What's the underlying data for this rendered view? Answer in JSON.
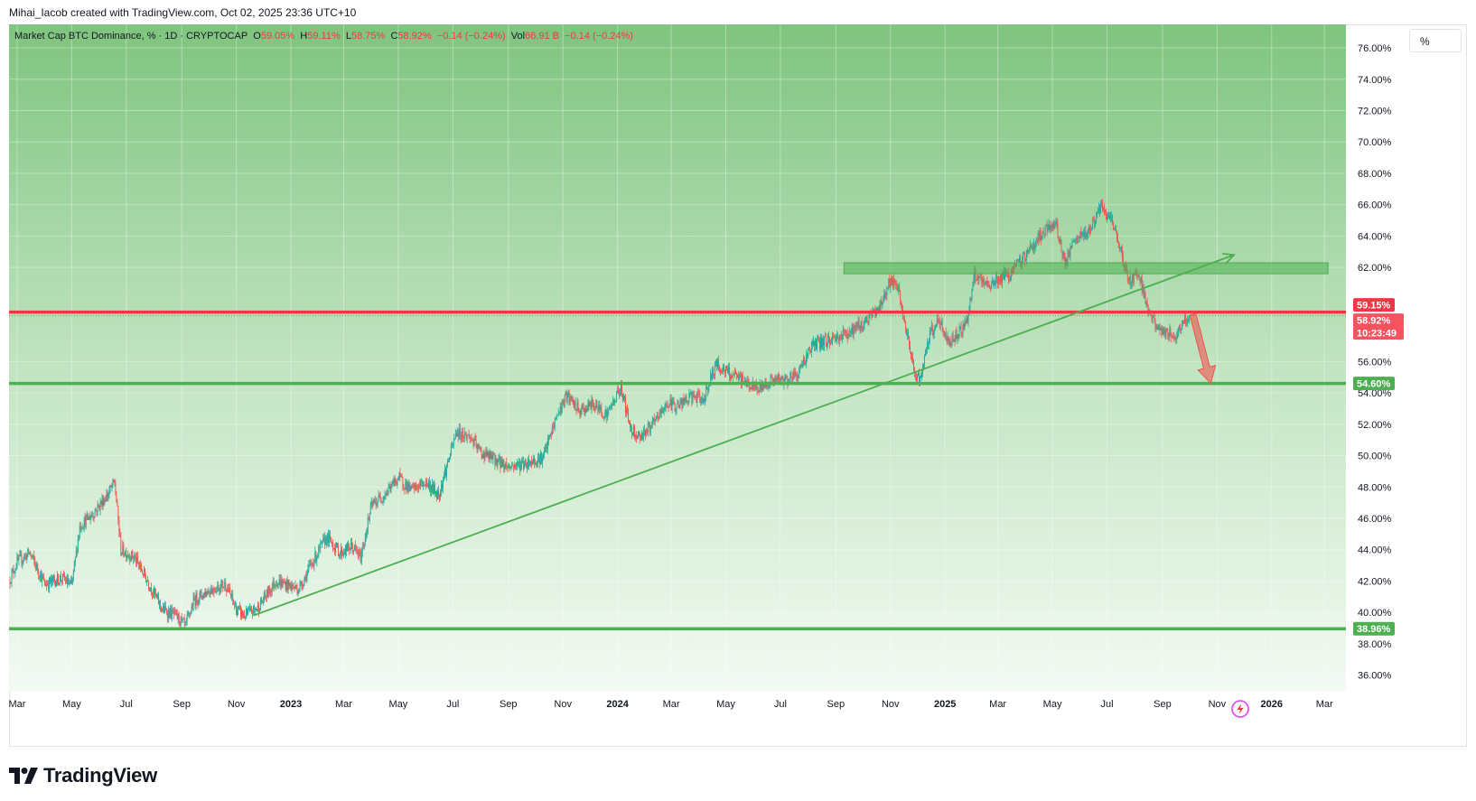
{
  "header": {
    "attribution": "Mihai_Iacob created with TradingView.com, Oct 02, 2025 23:36 UTC+10"
  },
  "legend": {
    "symbol": "Market Cap BTC Dominance, % · 1D · CRYPTOCAP",
    "o_label": "O",
    "o_value": "59.05%",
    "h_label": "H",
    "h_value": "59.11%",
    "l_label": "L",
    "l_value": "58.75%",
    "c_label": "C",
    "c_value": "58.92%",
    "change": "−0.14 (−0.24%)",
    "vol_label": "Vol",
    "vol_value": "66.91 B",
    "vol_change": "−0.14 (−0.24%)"
  },
  "scale_button": {
    "label": "%"
  },
  "branding": {
    "logo_text": "TradingView",
    "logo_icon": "tradingview-logo-icon"
  },
  "price_badges": [
    {
      "text": "59.15%",
      "value": 59.15,
      "color": "#f23645"
    },
    {
      "text": "58.92%",
      "value": 58.92,
      "color": "#f7525f"
    },
    {
      "text": "10:23:49",
      "value": 58.92,
      "color": "#f7525f"
    },
    {
      "text": "54.60%",
      "value": 54.6,
      "color": "#4caf50"
    },
    {
      "text": "38.96%",
      "value": 38.96,
      "color": "#4caf50"
    }
  ],
  "colors": {
    "up": "#26a69a",
    "down": "#ef5350",
    "support": "#4caf50",
    "resistance": "#f23645",
    "zone": "#4caf50",
    "bg_top": "#7fc47f",
    "bg_bottom": "#f3faf3"
  },
  "icons": {
    "flash": "lightning-flash-icon"
  },
  "chart_data": {
    "type": "candlestick",
    "title": "Market Cap BTC Dominance, % · 1D · CRYPTOCAP",
    "y_unit": "%",
    "ylim": [
      35.0,
      77.5
    ],
    "x_range": [
      "2022-02-20",
      "2026-03-25"
    ],
    "y_ticks": [
      "76.00%",
      "74.00%",
      "72.00%",
      "70.00%",
      "68.00%",
      "66.00%",
      "64.00%",
      "62.00%",
      "56.00%",
      "54.00%",
      "52.00%",
      "50.00%",
      "48.00%",
      "46.00%",
      "44.00%",
      "42.00%",
      "40.00%",
      "38.00%",
      "36.00%"
    ],
    "y_tick_values": [
      76,
      74,
      72,
      70,
      68,
      66,
      64,
      62,
      56,
      54,
      52,
      50,
      48,
      46,
      44,
      42,
      40,
      38,
      36
    ],
    "x_ticks": [
      {
        "label": "Mar",
        "date": "2022-03-01",
        "year": false
      },
      {
        "label": "May",
        "date": "2022-05-01",
        "year": false
      },
      {
        "label": "Jul",
        "date": "2022-07-01",
        "year": false
      },
      {
        "label": "Sep",
        "date": "2022-09-01",
        "year": false
      },
      {
        "label": "Nov",
        "date": "2022-11-01",
        "year": false
      },
      {
        "label": "2023",
        "date": "2023-01-01",
        "year": true
      },
      {
        "label": "Mar",
        "date": "2023-03-01",
        "year": false
      },
      {
        "label": "May",
        "date": "2023-05-01",
        "year": false
      },
      {
        "label": "Jul",
        "date": "2023-07-01",
        "year": false
      },
      {
        "label": "Sep",
        "date": "2023-09-01",
        "year": false
      },
      {
        "label": "Nov",
        "date": "2023-11-01",
        "year": false
      },
      {
        "label": "2024",
        "date": "2024-01-01",
        "year": true
      },
      {
        "label": "Mar",
        "date": "2024-03-01",
        "year": false
      },
      {
        "label": "May",
        "date": "2024-05-01",
        "year": false
      },
      {
        "label": "Jul",
        "date": "2024-07-01",
        "year": false
      },
      {
        "label": "Sep",
        "date": "2024-09-01",
        "year": false
      },
      {
        "label": "Nov",
        "date": "2024-11-01",
        "year": false
      },
      {
        "label": "2025",
        "date": "2025-01-01",
        "year": true
      },
      {
        "label": "Mar",
        "date": "2025-03-01",
        "year": false
      },
      {
        "label": "May",
        "date": "2025-05-01",
        "year": false
      },
      {
        "label": "Jul",
        "date": "2025-07-01",
        "year": false
      },
      {
        "label": "Sep",
        "date": "2025-09-01",
        "year": false
      },
      {
        "label": "Nov",
        "date": "2025-11-01",
        "year": false
      },
      {
        "label": "2026",
        "date": "2026-01-01",
        "year": true
      },
      {
        "label": "Mar",
        "date": "2026-03-01",
        "year": false
      }
    ],
    "series": [
      {
        "name": "BTC.D",
        "points": [
          [
            "2022-02-20",
            42.0
          ],
          [
            "2022-03-01",
            43.2
          ],
          [
            "2022-03-15",
            43.8
          ],
          [
            "2022-04-01",
            41.8
          ],
          [
            "2022-04-20",
            42.2
          ],
          [
            "2022-05-01",
            41.7
          ],
          [
            "2022-05-10",
            45.5
          ],
          [
            "2022-05-25",
            46.3
          ],
          [
            "2022-06-10",
            47.5
          ],
          [
            "2022-06-18",
            48.3
          ],
          [
            "2022-06-25",
            44.0
          ],
          [
            "2022-07-10",
            43.5
          ],
          [
            "2022-07-25",
            42.0
          ],
          [
            "2022-08-10",
            40.2
          ],
          [
            "2022-08-25",
            39.8
          ],
          [
            "2022-09-05",
            39.1
          ],
          [
            "2022-09-15",
            40.8
          ],
          [
            "2022-10-01",
            41.4
          ],
          [
            "2022-10-20",
            41.8
          ],
          [
            "2022-11-01",
            40.2
          ],
          [
            "2022-11-10",
            39.8
          ],
          [
            "2022-11-25",
            40.3
          ],
          [
            "2022-12-15",
            42.0
          ],
          [
            "2023-01-10",
            41.5
          ],
          [
            "2023-01-25",
            43.2
          ],
          [
            "2023-02-10",
            44.8
          ],
          [
            "2023-02-25",
            43.8
          ],
          [
            "2023-03-10",
            44.2
          ],
          [
            "2023-03-20",
            43.5
          ],
          [
            "2023-04-01",
            46.8
          ],
          [
            "2023-04-15",
            47.5
          ],
          [
            "2023-05-01",
            48.6
          ],
          [
            "2023-05-15",
            47.8
          ],
          [
            "2023-06-01",
            48.3
          ],
          [
            "2023-06-15",
            47.5
          ],
          [
            "2023-06-25",
            49.5
          ],
          [
            "2023-07-05",
            51.5
          ],
          [
            "2023-07-20",
            51.2
          ],
          [
            "2023-08-01",
            50.2
          ],
          [
            "2023-08-15",
            49.8
          ],
          [
            "2023-09-01",
            49.3
          ],
          [
            "2023-09-20",
            49.5
          ],
          [
            "2023-10-10",
            49.9
          ],
          [
            "2023-10-25",
            52.5
          ],
          [
            "2023-11-05",
            53.8
          ],
          [
            "2023-11-20",
            52.8
          ],
          [
            "2023-12-05",
            53.3
          ],
          [
            "2023-12-20",
            52.6
          ],
          [
            "2024-01-05",
            54.4
          ],
          [
            "2024-01-15",
            51.8
          ],
          [
            "2024-01-25",
            51.2
          ],
          [
            "2024-02-10",
            52.0
          ],
          [
            "2024-02-25",
            53.3
          ],
          [
            "2024-03-10",
            53.2
          ],
          [
            "2024-03-25",
            53.8
          ],
          [
            "2024-04-05",
            53.5
          ],
          [
            "2024-04-20",
            55.8
          ],
          [
            "2024-05-05",
            55.2
          ],
          [
            "2024-05-20",
            54.8
          ],
          [
            "2024-06-05",
            54.2
          ],
          [
            "2024-06-20",
            54.8
          ],
          [
            "2024-07-05",
            54.8
          ],
          [
            "2024-07-20",
            55.2
          ],
          [
            "2024-08-05",
            57.0
          ],
          [
            "2024-08-20",
            57.3
          ],
          [
            "2024-09-05",
            57.6
          ],
          [
            "2024-09-20",
            58.0
          ],
          [
            "2024-10-05",
            58.6
          ],
          [
            "2024-10-20",
            59.5
          ],
          [
            "2024-11-01",
            61.2
          ],
          [
            "2024-11-10",
            60.5
          ],
          [
            "2024-11-20",
            57.5
          ],
          [
            "2024-11-28",
            55.2
          ],
          [
            "2024-12-05",
            54.9
          ],
          [
            "2024-12-15",
            57.8
          ],
          [
            "2024-12-25",
            58.6
          ],
          [
            "2025-01-05",
            57.2
          ],
          [
            "2025-01-15",
            57.8
          ],
          [
            "2025-01-25",
            58.5
          ],
          [
            "2025-02-03",
            61.5
          ],
          [
            "2025-02-15",
            60.8
          ],
          [
            "2025-03-01",
            61.2
          ],
          [
            "2025-03-15",
            61.6
          ],
          [
            "2025-04-01",
            62.8
          ],
          [
            "2025-04-20",
            64.2
          ],
          [
            "2025-05-05",
            64.8
          ],
          [
            "2025-05-15",
            62.2
          ],
          [
            "2025-05-25",
            63.6
          ],
          [
            "2025-06-10",
            64.3
          ],
          [
            "2025-06-25",
            65.8
          ],
          [
            "2025-07-05",
            65.0
          ],
          [
            "2025-07-15",
            63.5
          ],
          [
            "2025-07-25",
            61.0
          ],
          [
            "2025-08-05",
            61.8
          ],
          [
            "2025-08-15",
            59.5
          ],
          [
            "2025-08-25",
            58.2
          ],
          [
            "2025-09-05",
            57.8
          ],
          [
            "2025-09-15",
            57.6
          ],
          [
            "2025-09-25",
            58.6
          ],
          [
            "2025-10-01",
            58.92
          ]
        ]
      }
    ],
    "annotations": {
      "horizontal_lines": [
        {
          "value": 59.15,
          "color": "#f23645",
          "label": "59.15%"
        },
        {
          "value": 54.6,
          "color": "#4caf50",
          "label": "54.60%"
        },
        {
          "value": 38.96,
          "color": "#4caf50",
          "label": "38.96%"
        }
      ],
      "zone": {
        "from_date": "2024-09-10",
        "to_date": "2026-03-05",
        "low": 61.6,
        "high": 62.3,
        "color": "#4caf50"
      },
      "trendline": {
        "from": [
          "2022-11-20",
          39.8
        ],
        "to": [
          "2025-11-20",
          62.8
        ],
        "arrow": true,
        "color": "#4caf50"
      },
      "projection_arrow": {
        "from": [
          "2025-10-05",
          59.0
        ],
        "to": [
          "2025-10-25",
          54.6
        ],
        "color": "#ef5350"
      }
    },
    "grid": true,
    "legend_position": "top-left"
  }
}
